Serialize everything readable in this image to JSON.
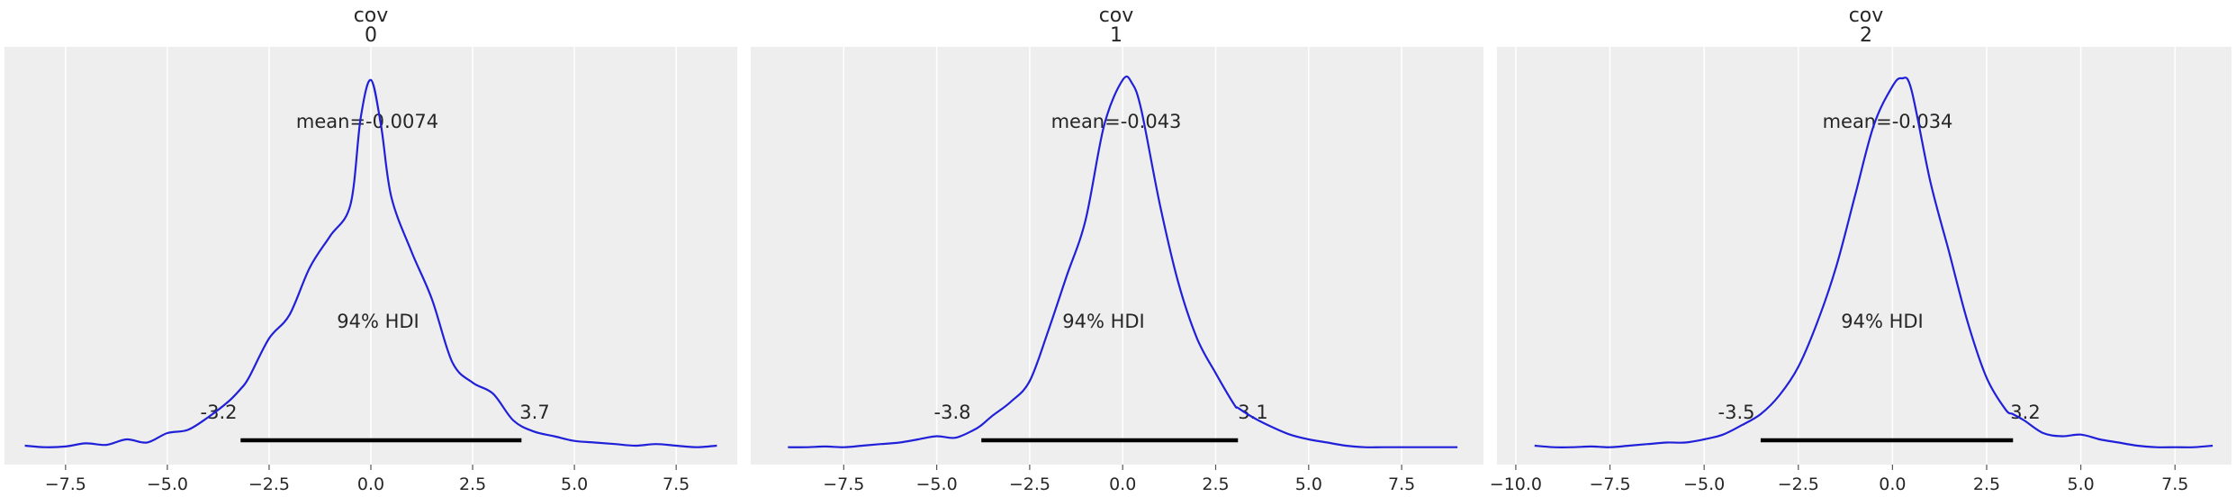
{
  "chart_data": [
    {
      "type": "line",
      "title_lines": [
        "cov",
        "0"
      ],
      "xlim": [
        -9.0,
        9.0
      ],
      "ylim": [
        -0.01,
        0.255
      ],
      "xticks": [
        -7.5,
        -5.0,
        -2.5,
        0.0,
        2.5,
        5.0,
        7.5
      ],
      "xtick_labels": [
        "−7.5",
        "−5.0",
        "−2.5",
        "0.0",
        "2.5",
        "5.0",
        "7.5"
      ],
      "grid": "x",
      "line_color": "#2020d8",
      "density": {
        "x": [
          -8.5,
          -8.0,
          -7.5,
          -7.0,
          -6.5,
          -6.0,
          -5.5,
          -5.0,
          -4.5,
          -4.0,
          -3.5,
          -3.2,
          -3.0,
          -2.5,
          -2.0,
          -1.5,
          -1.0,
          -0.5,
          -0.25,
          0.0,
          0.25,
          0.5,
          1.0,
          1.5,
          2.0,
          2.5,
          3.0,
          3.5,
          4.0,
          4.5,
          5.0,
          5.5,
          6.0,
          6.5,
          7.0,
          7.5,
          8.0,
          8.5
        ],
        "y": [
          0.002,
          0.001,
          0.0015,
          0.0035,
          0.0025,
          0.006,
          0.004,
          0.01,
          0.012,
          0.02,
          0.03,
          0.038,
          0.045,
          0.07,
          0.085,
          0.115,
          0.135,
          0.155,
          0.21,
          0.234,
          0.205,
          0.16,
          0.125,
          0.095,
          0.055,
          0.042,
          0.035,
          0.018,
          0.011,
          0.008,
          0.005,
          0.004,
          0.003,
          0.002,
          0.003,
          0.002,
          0.001,
          0.002
        ]
      },
      "mean_label": "mean=-0.0074",
      "hdi_label": "94% HDI",
      "hdi_low": -3.2,
      "hdi_high": 3.7,
      "hdi_low_label": "-3.2",
      "hdi_high_label": "3.7"
    },
    {
      "type": "line",
      "title_lines": [
        "cov",
        "1"
      ],
      "xlim": [
        -10.0,
        9.7
      ],
      "ylim": [
        -0.01,
        0.255
      ],
      "xticks": [
        -7.5,
        -5.0,
        -2.5,
        0.0,
        2.5,
        5.0,
        7.5
      ],
      "xtick_labels": [
        "−7.5",
        "−5.0",
        "−2.5",
        "0.0",
        "2.5",
        "5.0",
        "7.5"
      ],
      "grid": "x",
      "line_color": "#2020d8",
      "density": {
        "x": [
          -9.0,
          -8.5,
          -8.0,
          -7.5,
          -7.0,
          -6.5,
          -6.0,
          -5.5,
          -5.0,
          -4.5,
          -4.0,
          -3.8,
          -3.5,
          -3.0,
          -2.5,
          -2.0,
          -1.5,
          -1.0,
          -0.5,
          0.0,
          0.25,
          0.5,
          1.0,
          1.5,
          2.0,
          2.5,
          3.0,
          3.1,
          3.5,
          4.0,
          4.5,
          5.0,
          5.5,
          6.0,
          6.5,
          7.0,
          7.5,
          8.0,
          8.5,
          9.0
        ],
        "y": [
          0.001,
          0.001,
          0.0015,
          0.001,
          0.002,
          0.003,
          0.004,
          0.006,
          0.008,
          0.007,
          0.012,
          0.015,
          0.021,
          0.03,
          0.043,
          0.075,
          0.11,
          0.145,
          0.205,
          0.234,
          0.232,
          0.215,
          0.155,
          0.105,
          0.07,
          0.048,
          0.028,
          0.026,
          0.02,
          0.014,
          0.009,
          0.006,
          0.004,
          0.002,
          0.001,
          0.001,
          0.001,
          0.001,
          0.001,
          0.001
        ]
      },
      "mean_label": "mean=-0.043",
      "hdi_label": "94% HDI",
      "hdi_low": -3.8,
      "hdi_high": 3.1,
      "hdi_low_label": "-3.8",
      "hdi_high_label": "3.1"
    },
    {
      "type": "line",
      "title_lines": [
        "cov",
        "2"
      ],
      "xlim": [
        -10.5,
        9.0
      ],
      "ylim": [
        -0.01,
        0.255
      ],
      "xticks": [
        -10.0,
        -7.5,
        -5.0,
        -2.5,
        0.0,
        2.5,
        5.0,
        7.5
      ],
      "xtick_labels": [
        "−10.0",
        "−7.5",
        "−5.0",
        "−2.5",
        "0.0",
        "2.5",
        "5.0",
        "7.5"
      ],
      "grid": "x",
      "line_color": "#2020d8",
      "density": {
        "x": [
          -9.5,
          -9.0,
          -8.5,
          -8.0,
          -7.5,
          -7.0,
          -6.5,
          -6.0,
          -5.5,
          -5.0,
          -4.5,
          -4.0,
          -3.5,
          -3.0,
          -2.5,
          -2.0,
          -1.5,
          -1.0,
          -0.5,
          0.0,
          0.25,
          0.5,
          1.0,
          1.5,
          2.0,
          2.5,
          3.0,
          3.2,
          3.5,
          4.0,
          4.5,
          5.0,
          5.5,
          6.0,
          6.5,
          7.0,
          7.5,
          8.0,
          8.5
        ],
        "y": [
          0.002,
          0.001,
          0.001,
          0.0015,
          0.001,
          0.002,
          0.003,
          0.004,
          0.004,
          0.006,
          0.009,
          0.015,
          0.022,
          0.034,
          0.052,
          0.08,
          0.115,
          0.16,
          0.205,
          0.23,
          0.235,
          0.228,
          0.17,
          0.125,
          0.08,
          0.045,
          0.025,
          0.022,
          0.018,
          0.01,
          0.008,
          0.009,
          0.006,
          0.004,
          0.002,
          0.001,
          0.001,
          0.001,
          0.002
        ]
      },
      "mean_label": "mean=-0.034",
      "hdi_label": "94% HDI",
      "hdi_low": -3.5,
      "hdi_high": 3.2,
      "hdi_low_label": "-3.5",
      "hdi_high_label": "3.2"
    }
  ]
}
